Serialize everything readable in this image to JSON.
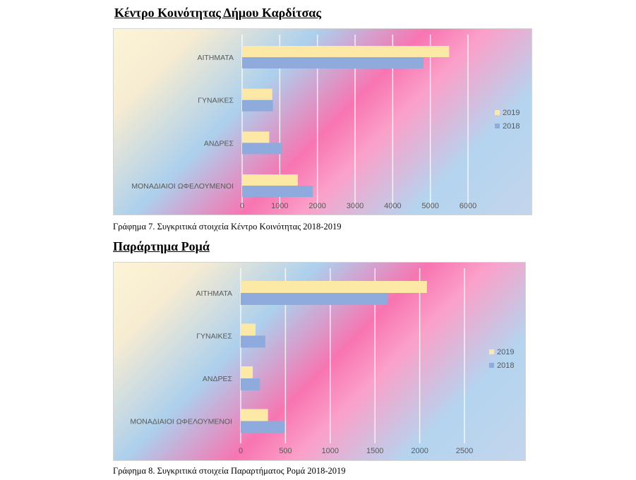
{
  "section1": {
    "heading": "Κέντρο Κοινότητας Δήμου Καρδίτσας",
    "caption": "Γράφημα 7. Συγκριτικά στοιχεία Κέντρο Κοινότητας 2018-2019"
  },
  "section2": {
    "heading": "Παράρτημα Ρομά",
    "caption": "Γράφημα 8. Συγκριτικά στοιχεία Παραρτήματος Ρομά 2018-2019"
  },
  "colors": {
    "series_2019": "#fde9a6",
    "series_2018": "#8faadc",
    "gridline": "#ffffff",
    "text": "#595959"
  },
  "chart_data": [
    {
      "type": "bar",
      "orientation": "horizontal",
      "categories": [
        "ΑΙΤΗΜΑΤΑ",
        "ΓΥΝΑΙΚΕΣ",
        "ΑΝΔΡΕΣ",
        "ΜΟΝΑΔΙΑΙΟΙ ΩΦΕΛΟΥΜΕΝΟΙ"
      ],
      "series": [
        {
          "name": "2019",
          "values": [
            5500,
            800,
            720,
            1480
          ]
        },
        {
          "name": "2018",
          "values": [
            4820,
            820,
            1060,
            1880
          ]
        }
      ],
      "xlim": [
        0,
        6000
      ],
      "xticks": [
        "0",
        "1000",
        "2000",
        "3000",
        "4000",
        "5000",
        "6000"
      ],
      "grid": true,
      "legend": "right"
    },
    {
      "type": "bar",
      "orientation": "horizontal",
      "categories": [
        "ΑΙΤΗΜΑΤΑ",
        "ΓΥΝΑΙΚΕΣ",
        "ΑΝΔΡΕΣ",
        "ΜΟΝΑΔΙΑΙΟΙ ΩΦΕΛΟΥΜΕΝΟΙ"
      ],
      "series": [
        {
          "name": "2019",
          "values": [
            2080,
            165,
            135,
            305
          ]
        },
        {
          "name": "2018",
          "values": [
            1640,
            275,
            215,
            490
          ]
        }
      ],
      "xlim": [
        0,
        2500
      ],
      "xticks": [
        "0",
        "500",
        "1000",
        "1500",
        "2000",
        "2500"
      ],
      "grid": true,
      "legend": "right"
    }
  ]
}
